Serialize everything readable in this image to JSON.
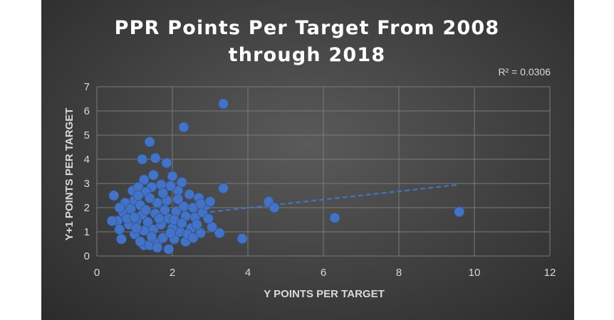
{
  "chart_data": {
    "type": "scatter",
    "title_lines": [
      "PPR Points Per Target From 2008",
      "through 2018"
    ],
    "xlabel": "Y POINTS PER TARGET",
    "ylabel": "Y+1 POINTS PER TARGET",
    "xlim": [
      0,
      12
    ],
    "ylim": [
      0,
      7
    ],
    "x_ticks": [
      0,
      2,
      4,
      6,
      8,
      10,
      12
    ],
    "y_ticks": [
      0,
      1,
      2,
      3,
      4,
      5,
      6,
      7
    ],
    "grid": true,
    "trendline": {
      "type": "linear",
      "x_start": 3.0,
      "y_start": 1.82,
      "x_end": 9.6,
      "y_end": 2.95,
      "label": "R² = 0.0306"
    },
    "marker_color": "#4472c4",
    "points": [
      [
        3.35,
        6.3
      ],
      [
        2.3,
        5.33
      ],
      [
        1.4,
        4.72
      ],
      [
        1.2,
        4.0
      ],
      [
        1.55,
        4.05
      ],
      [
        1.85,
        3.85
      ],
      [
        2.0,
        3.3
      ],
      [
        2.25,
        3.05
      ],
      [
        1.5,
        3.35
      ],
      [
        1.25,
        3.15
      ],
      [
        3.35,
        2.8
      ],
      [
        4.55,
        2.25
      ],
      [
        4.7,
        2.0
      ],
      [
        6.3,
        1.58
      ],
      [
        9.6,
        1.83
      ],
      [
        3.85,
        0.72
      ],
      [
        3.25,
        0.95
      ],
      [
        3.05,
        1.2
      ],
      [
        2.75,
        0.95
      ],
      [
        2.35,
        0.6
      ],
      [
        1.9,
        0.28
      ],
      [
        1.25,
        0.45
      ],
      [
        0.45,
        2.5
      ],
      [
        0.55,
        1.45
      ],
      [
        0.65,
        0.7
      ],
      [
        0.4,
        1.45
      ],
      [
        0.6,
        1.1
      ],
      [
        0.75,
        2.2
      ],
      [
        0.95,
        2.7
      ],
      [
        1.1,
        2.85
      ],
      [
        0.7,
        1.8
      ],
      [
        0.85,
        1.3
      ],
      [
        1.0,
        0.9
      ],
      [
        1.15,
        0.6
      ],
      [
        1.4,
        0.45
      ],
      [
        1.6,
        0.55
      ],
      [
        1.75,
        0.75
      ],
      [
        2.05,
        0.7
      ],
      [
        2.2,
        1.0
      ],
      [
        2.5,
        1.15
      ],
      [
        2.6,
        1.6
      ],
      [
        2.8,
        1.8
      ],
      [
        2.9,
        2.1
      ],
      [
        3.0,
        2.25
      ],
      [
        2.7,
        2.4
      ],
      [
        2.45,
        2.55
      ],
      [
        2.15,
        2.7
      ],
      [
        1.95,
        2.9
      ],
      [
        1.7,
        2.95
      ],
      [
        1.45,
        2.85
      ],
      [
        1.3,
        2.65
      ],
      [
        1.0,
        2.3
      ],
      [
        0.9,
        1.95
      ],
      [
        1.2,
        1.7
      ],
      [
        1.35,
        1.4
      ],
      [
        1.5,
        1.1
      ],
      [
        1.7,
        1.3
      ],
      [
        1.9,
        1.55
      ],
      [
        2.1,
        1.85
      ],
      [
        2.3,
        2.05
      ],
      [
        2.55,
        2.0
      ],
      [
        2.65,
        1.3
      ],
      [
        2.4,
        0.9
      ],
      [
        2.0,
        1.15
      ],
      [
        1.8,
        1.9
      ],
      [
        1.6,
        2.2
      ],
      [
        1.4,
        2.4
      ],
      [
        1.15,
        2.1
      ],
      [
        1.05,
        1.45
      ],
      [
        0.8,
        1.55
      ],
      [
        1.25,
        1.05
      ],
      [
        1.55,
        1.75
      ],
      [
        1.85,
        2.3
      ],
      [
        2.15,
        2.35
      ],
      [
        2.35,
        1.65
      ],
      [
        2.05,
        1.5
      ],
      [
        1.65,
        1.55
      ],
      [
        1.3,
        1.9
      ],
      [
        1.0,
        1.6
      ],
      [
        1.45,
        0.8
      ],
      [
        1.95,
        0.95
      ],
      [
        2.25,
        1.35
      ],
      [
        2.75,
        2.15
      ],
      [
        1.75,
        2.6
      ],
      [
        1.1,
        2.5
      ],
      [
        0.6,
        2.0
      ],
      [
        2.95,
        1.55
      ],
      [
        2.55,
        0.75
      ],
      [
        1.6,
        0.35
      ],
      [
        1.05,
        1.15
      ]
    ]
  }
}
